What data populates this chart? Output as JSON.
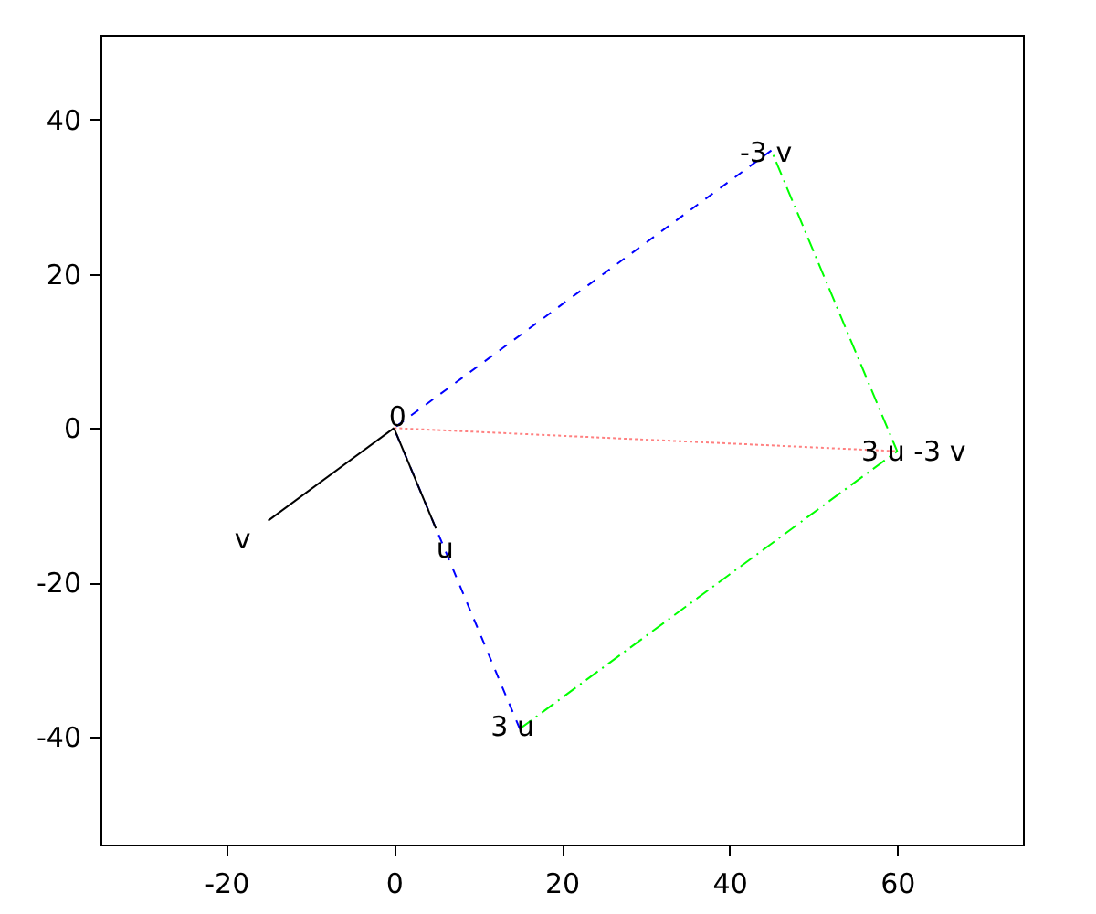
{
  "chart_data": {
    "type": "line",
    "xlim": [
      -35,
      75
    ],
    "ylim": [
      -54,
      51
    ],
    "xticks": [
      -20,
      0,
      20,
      40,
      60
    ],
    "yticks": [
      -40,
      -20,
      0,
      20,
      40
    ],
    "grid": false,
    "series": [
      {
        "color": "#0000ff",
        "line_style": "dashed",
        "x": [
          15,
          0,
          45
        ],
        "values": [
          -39,
          0,
          36
        ]
      },
      {
        "color": "#00ff00",
        "line_style": "dashdot",
        "x": [
          15,
          60,
          45
        ],
        "values": [
          -39,
          -3,
          36
        ]
      },
      {
        "color": "#ff8080",
        "line_style": "dotted",
        "x": [
          0,
          60
        ],
        "values": [
          0,
          -3
        ]
      },
      {
        "color": "#000000",
        "line_style": "solid",
        "x": [
          0,
          -15
        ],
        "values": [
          0,
          -12
        ]
      },
      {
        "color": "#000000",
        "line_style": "solid",
        "x": [
          0,
          5
        ],
        "values": [
          0,
          -13
        ]
      }
    ],
    "annotations": [
      {
        "text": "0",
        "x": 0,
        "y": 0
      },
      {
        "text": "u",
        "x": 5,
        "y": -13
      },
      {
        "text": "v",
        "x": -15,
        "y": -12
      },
      {
        "text": "3 u",
        "x": 15,
        "y": -39
      },
      {
        "text": "-3 v",
        "x": 45,
        "y": 36
      },
      {
        "text": "3 u -3 v",
        "x": 60,
        "y": -3
      }
    ]
  }
}
